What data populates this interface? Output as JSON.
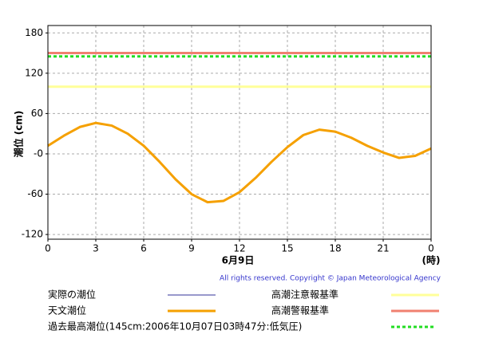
{
  "chart_data": {
    "type": "line",
    "x_label": "6月9日",
    "x_unit": "(時)",
    "y_label": "潮位 (cm)",
    "copyright": "All rights reserved. Copyright © Japan Meteorological Agency",
    "x": [
      0,
      1,
      2,
      3,
      4,
      5,
      6,
      7,
      8,
      9,
      10,
      11,
      12,
      13,
      14,
      15,
      16,
      17,
      18,
      19,
      20,
      21,
      22,
      23,
      24
    ],
    "series": [
      {
        "name": "実際の潮位",
        "color": "#333399",
        "values": [
          null,
          null,
          null,
          null,
          null,
          null,
          null,
          null,
          null,
          null,
          null,
          null,
          null,
          null,
          null,
          null,
          null,
          null,
          null,
          null,
          null,
          null,
          null,
          null,
          null
        ]
      },
      {
        "name": "天文潮位",
        "color": "#f5a000",
        "values": [
          12,
          27,
          40,
          46,
          42,
          30,
          12,
          -12,
          -38,
          -60,
          -72,
          -70,
          -57,
          -36,
          -12,
          10,
          28,
          36,
          33,
          24,
          12,
          2,
          -6,
          -3,
          8
        ]
      }
    ],
    "reference_lines": [
      {
        "name": "高潮注意報基準",
        "value": 100,
        "color": "#ffff99",
        "style": "solid"
      },
      {
        "name": "高潮警報基準",
        "value": 150,
        "color": "#f08070",
        "style": "solid"
      },
      {
        "name": "過去最高潮位(145cm:2006年10月07日03時47分:低気圧)",
        "value": 145,
        "color": "#22dd22",
        "style": "dotted"
      }
    ],
    "xlim": [
      0,
      24
    ],
    "xticks": [
      0,
      3,
      6,
      9,
      12,
      15,
      18,
      21,
      {
        "value": 24,
        "label": "0"
      }
    ],
    "ylim": [
      -127,
      191
    ],
    "yticks": [
      -120,
      -60,
      {
        "value": 0,
        "label": "-0"
      },
      60,
      120,
      180
    ],
    "grid": true
  }
}
